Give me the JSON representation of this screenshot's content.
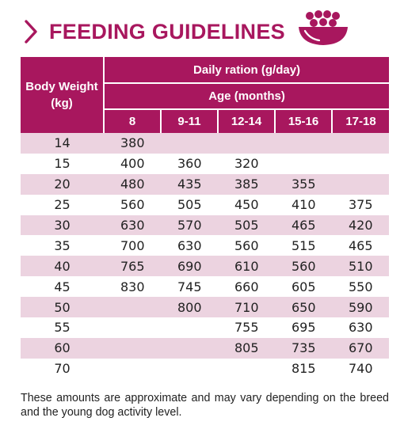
{
  "header": {
    "title": "FEEDING GUIDELINES",
    "chevron_icon": "chevron-right-icon",
    "bowl_icon": "food-bowl-icon"
  },
  "colors": {
    "accent": "#a8175e",
    "row_tint": "#ecd3e0"
  },
  "table": {
    "body_weight_header": "Body Weight (kg)",
    "daily_ration_header": "Daily ration (g/day)",
    "age_header": "Age (months)",
    "age_columns": [
      "8",
      "9-11",
      "12-14",
      "15-16",
      "17-18"
    ],
    "rows": [
      {
        "weight": "14",
        "values": [
          "380",
          "",
          "",
          "",
          ""
        ]
      },
      {
        "weight": "15",
        "values": [
          "400",
          "360",
          "320",
          "",
          ""
        ]
      },
      {
        "weight": "20",
        "values": [
          "480",
          "435",
          "385",
          "355",
          ""
        ]
      },
      {
        "weight": "25",
        "values": [
          "560",
          "505",
          "450",
          "410",
          "375"
        ]
      },
      {
        "weight": "30",
        "values": [
          "630",
          "570",
          "505",
          "465",
          "420"
        ]
      },
      {
        "weight": "35",
        "values": [
          "700",
          "630",
          "560",
          "515",
          "465"
        ]
      },
      {
        "weight": "40",
        "values": [
          "765",
          "690",
          "610",
          "560",
          "510"
        ]
      },
      {
        "weight": "45",
        "values": [
          "830",
          "745",
          "660",
          "605",
          "550"
        ]
      },
      {
        "weight": "50",
        "values": [
          "",
          "800",
          "710",
          "650",
          "590"
        ]
      },
      {
        "weight": "55",
        "values": [
          "",
          "",
          "755",
          "695",
          "630"
        ]
      },
      {
        "weight": "60",
        "values": [
          "",
          "",
          "805",
          "735",
          "670"
        ]
      },
      {
        "weight": "70",
        "values": [
          "",
          "",
          "",
          "815",
          "740"
        ]
      }
    ]
  },
  "footnote": "These amounts are approximate and may vary depending on the breed and the young dog activity level."
}
